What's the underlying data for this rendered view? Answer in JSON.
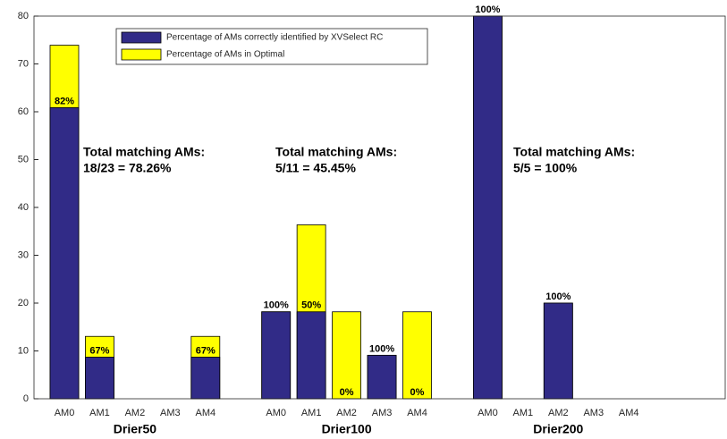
{
  "chart_data": {
    "type": "bar",
    "categories": [
      "AM0",
      "AM1",
      "AM2",
      "AM3",
      "AM4",
      null,
      "AM0",
      "AM1",
      "AM2",
      "AM3",
      "AM4",
      null,
      "AM0",
      "AM1",
      "AM2",
      "AM3",
      "AM4",
      null
    ],
    "groups": [
      "Drier50",
      "Drier100",
      "Drier200"
    ],
    "series": [
      {
        "name": "Percentage of AMs in Optimal",
        "color": "#ffff00",
        "values": [
          73.91,
          13.04,
          0,
          0,
          13.04,
          0,
          18.18,
          36.36,
          18.18,
          9.09,
          18.18,
          0,
          80,
          0,
          20,
          0,
          0,
          0
        ]
      },
      {
        "name": "Percentage of AMs correctly identified by XVSelect RC",
        "color": "#312b87",
        "values": [
          60.87,
          8.7,
          0,
          0,
          8.7,
          0,
          18.18,
          18.18,
          0,
          9.09,
          0,
          0,
          80,
          0,
          20,
          0,
          0,
          0
        ]
      }
    ],
    "bar_labels": [
      "82%",
      "67%",
      null,
      null,
      "67%",
      null,
      "100%",
      "50%",
      "0%",
      "100%",
      "0%",
      null,
      "100%",
      null,
      "100%",
      null,
      null,
      null
    ],
    "annotations": [
      [
        "Total matching AMs:",
        "18/23 = 78.26%"
      ],
      [
        "Total matching AMs:",
        "5/11 = 45.45%"
      ],
      [
        "Total matching AMs:",
        "5/5 = 100%"
      ]
    ],
    "ylim": [
      0,
      80
    ],
    "yticks": [
      0,
      10,
      20,
      30,
      40,
      50,
      60,
      70,
      80
    ]
  }
}
